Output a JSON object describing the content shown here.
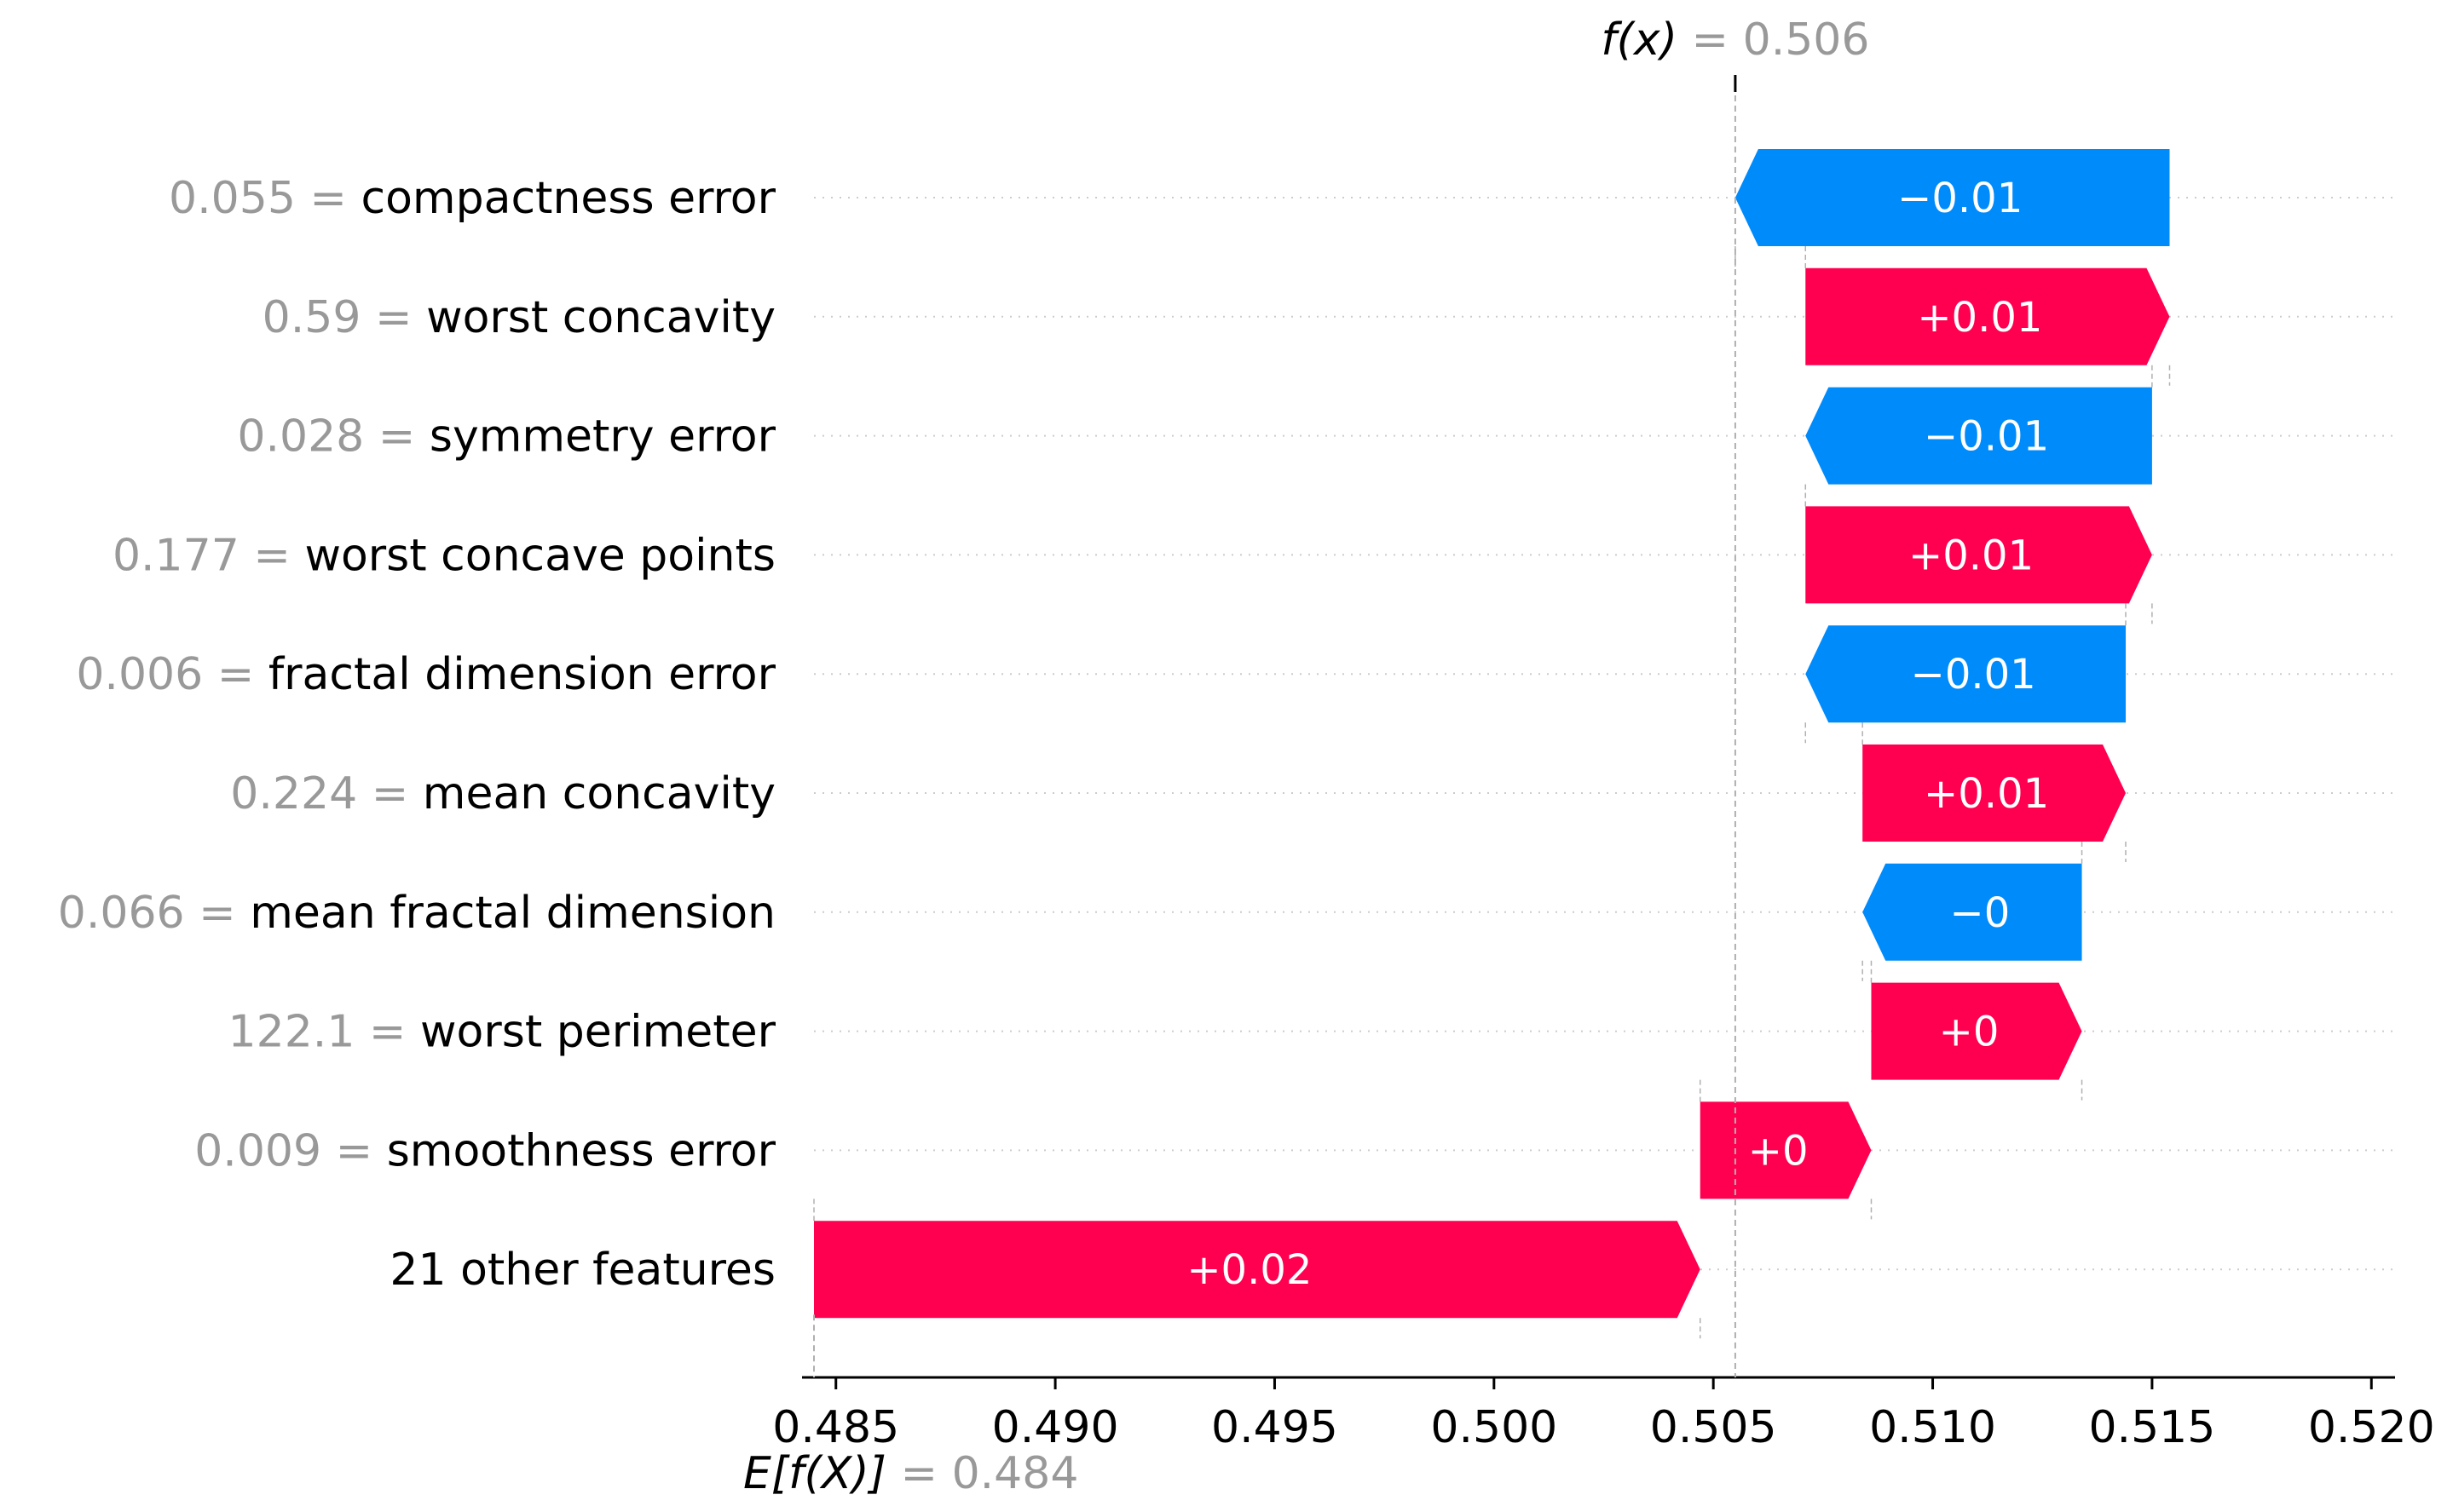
{
  "chart_data": {
    "type": "waterfall",
    "title": "",
    "xlabel": "",
    "ylabel": "",
    "xlim": [
      0.4845,
      0.5205
    ],
    "x_ticks": [
      "0.485",
      "0.490",
      "0.495",
      "0.500",
      "0.505",
      "0.510",
      "0.515",
      "0.520"
    ],
    "x_tick_values": [
      0.485,
      0.49,
      0.495,
      0.5,
      0.505,
      0.51,
      0.515,
      0.52
    ],
    "fx": {
      "label": "f(x)",
      "value": 0.5055,
      "value_text": "0.506"
    },
    "efx": {
      "label": "E[f(X)]",
      "value": 0.4845,
      "value_text": "0.484"
    },
    "colors": {
      "positive": "#ff0051",
      "negative": "#008bfb",
      "value_gray": "#999999"
    },
    "features": [
      {
        "value_text": "0.055",
        "name": "compactness error",
        "start": 0.5154,
        "end": 0.5055,
        "label": "−0.01"
      },
      {
        "value_text": "0.59",
        "name": "worst concavity",
        "start": 0.5071,
        "end": 0.5154,
        "label": "+0.01"
      },
      {
        "value_text": "0.028",
        "name": "symmetry error",
        "start": 0.515,
        "end": 0.5071,
        "label": "−0.01"
      },
      {
        "value_text": "0.177",
        "name": "worst concave points",
        "start": 0.5071,
        "end": 0.515,
        "label": "+0.01"
      },
      {
        "value_text": "0.006",
        "name": "fractal dimension error",
        "start": 0.5144,
        "end": 0.5071,
        "label": "−0.01"
      },
      {
        "value_text": "0.224",
        "name": "mean concavity",
        "start": 0.5084,
        "end": 0.5144,
        "label": "+0.01"
      },
      {
        "value_text": "0.066",
        "name": "mean fractal dimension",
        "start": 0.5134,
        "end": 0.5084,
        "label": "−0"
      },
      {
        "value_text": "122.1",
        "name": "worst perimeter",
        "start": 0.5086,
        "end": 0.5134,
        "label": "+0"
      },
      {
        "value_text": "0.009",
        "name": "smoothness error",
        "start": 0.5047,
        "end": 0.5086,
        "label": "+0"
      },
      {
        "value_text": "",
        "name": "21 other features",
        "start": 0.4845,
        "end": 0.5047,
        "label": "+0.02"
      }
    ]
  }
}
